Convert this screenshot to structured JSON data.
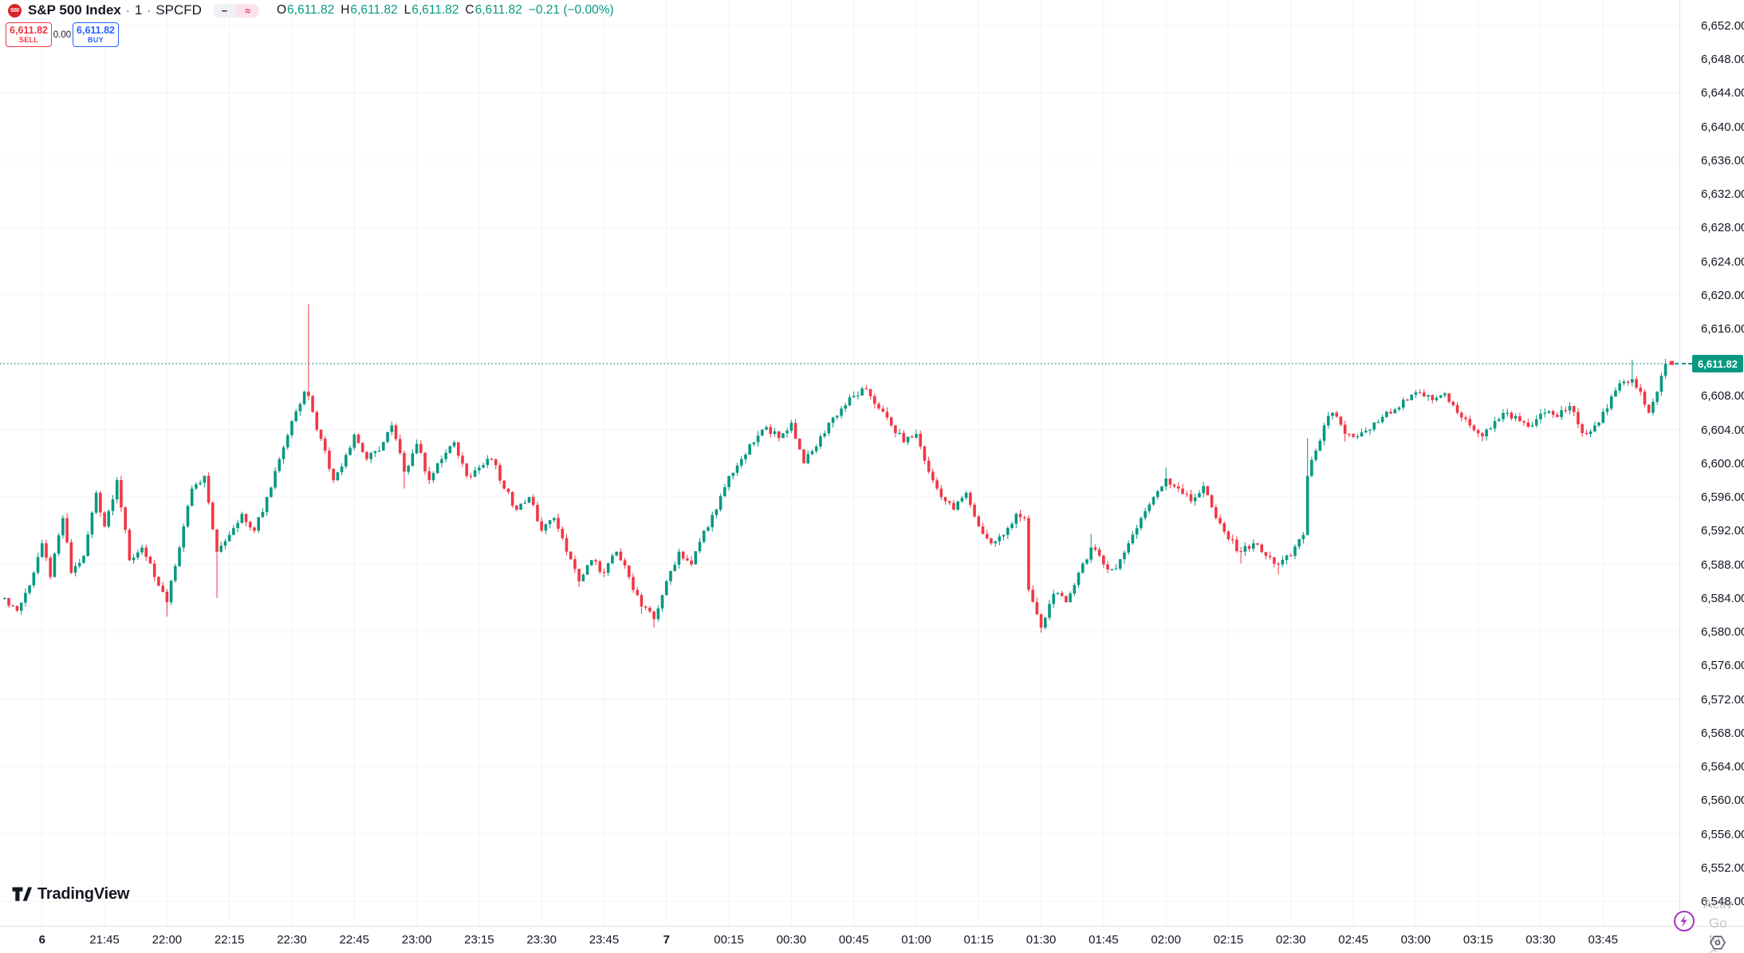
{
  "header": {
    "symbol_badge": "500",
    "symbol_name": "S&P 500 Index",
    "separator": "·",
    "interval": "1",
    "exchange": "SPCFD",
    "status_icons": [
      {
        "name": "dash-status-icon",
        "glyph": "−"
      },
      {
        "name": "approx-status-icon",
        "glyph": "≈"
      }
    ],
    "ohlc": {
      "o_label": "O",
      "o": "6,611.82",
      "h_label": "H",
      "h": "6,611.82",
      "l_label": "L",
      "l": "6,611.82",
      "c_label": "C",
      "c": "6,611.82",
      "change": "−0.21 (−0.00%)"
    }
  },
  "trade_panel": {
    "sell_price": "6,611.82",
    "sell_label": "SELL",
    "spread": "0.00",
    "buy_price": "6,611.82",
    "buy_label": "BUY"
  },
  "price_line": {
    "value": "6,611.82",
    "price": 6611.82,
    "color": "#089981"
  },
  "logo": {
    "text": "TradingView"
  },
  "watermark": {
    "line1": "Activ",
    "line2": "Go to S"
  },
  "time_axis": {
    "ticks": [
      {
        "label": "6",
        "time": "21:30",
        "bold": true
      },
      {
        "label": "21:45",
        "time": "21:45",
        "bold": false
      },
      {
        "label": "22:00",
        "time": "22:00",
        "bold": false
      },
      {
        "label": "22:15",
        "time": "22:15",
        "bold": false
      },
      {
        "label": "22:30",
        "time": "22:30",
        "bold": false
      },
      {
        "label": "22:45",
        "time": "22:45",
        "bold": false
      },
      {
        "label": "23:00",
        "time": "23:00",
        "bold": false
      },
      {
        "label": "23:15",
        "time": "23:15",
        "bold": false
      },
      {
        "label": "23:30",
        "time": "23:30",
        "bold": false
      },
      {
        "label": "23:45",
        "time": "23:45",
        "bold": false
      },
      {
        "label": "7",
        "time": "00:00",
        "bold": true
      },
      {
        "label": "00:15",
        "time": "00:15",
        "bold": false
      },
      {
        "label": "00:30",
        "time": "00:30",
        "bold": false
      },
      {
        "label": "00:45",
        "time": "00:45",
        "bold": false
      },
      {
        "label": "01:00",
        "time": "01:00",
        "bold": false
      },
      {
        "label": "01:15",
        "time": "01:15",
        "bold": false
      },
      {
        "label": "01:30",
        "time": "01:30",
        "bold": false
      },
      {
        "label": "01:45",
        "time": "01:45",
        "bold": false
      },
      {
        "label": "02:00",
        "time": "02:00",
        "bold": false
      },
      {
        "label": "02:15",
        "time": "02:15",
        "bold": false
      },
      {
        "label": "02:30",
        "time": "02:30",
        "bold": false
      },
      {
        "label": "02:45",
        "time": "02:45",
        "bold": false
      },
      {
        "label": "03:00",
        "time": "03:00",
        "bold": false
      },
      {
        "label": "03:15",
        "time": "03:15",
        "bold": false
      },
      {
        "label": "03:30",
        "time": "03:30",
        "bold": false
      },
      {
        "label": "03:45",
        "time": "03:45",
        "bold": false
      }
    ]
  },
  "chart_data": {
    "type": "candlestick",
    "title": "S&P 500 Index",
    "interval_minutes": 1,
    "symbol": "SPCFD",
    "session_start": "21:21",
    "colors": {
      "up": "#089981",
      "down": "#f23645",
      "grid": "#f2f3f5",
      "price_line": "#089981"
    },
    "y_axis": {
      "min": 6548,
      "max": 6652,
      "label_step": 4,
      "grid_step": 8,
      "hidden_labels": [
        6612
      ],
      "decimals": 2
    },
    "last_price": 6611.82,
    "waypoints": [
      [
        "21:21",
        6584
      ],
      [
        "21:24",
        6582.5
      ],
      [
        "21:27",
        6585.5
      ],
      [
        "21:30",
        6590.5
      ],
      [
        "21:32",
        6586.5
      ],
      [
        "21:35",
        6593.5
      ],
      [
        "21:37",
        6587
      ],
      [
        "21:40",
        6589
      ],
      [
        "21:43",
        6596.5
      ],
      [
        "21:45",
        6592.5
      ],
      [
        "21:48",
        6598
      ],
      [
        "21:51",
        6588.5
      ],
      [
        "21:54",
        6590
      ],
      [
        "21:57",
        6586.5
      ],
      [
        "22:00",
        6583.5,
        {
          "lo": 6581.8
        }
      ],
      [
        "22:03",
        6590
      ],
      [
        "22:06",
        6597
      ],
      [
        "22:09",
        6598.5
      ],
      [
        "22:12",
        6589.5,
        {
          "lo": 6584
        }
      ],
      [
        "22:15",
        6591.5
      ],
      [
        "22:18",
        6594
      ],
      [
        "22:21",
        6592
      ],
      [
        "22:24",
        6596
      ],
      [
        "22:27",
        6600.5
      ],
      [
        "22:30",
        6605
      ],
      [
        "22:33",
        6608.5
      ],
      [
        "22:34",
        6608,
        {
          "hi": 6618.9
        }
      ],
      [
        "22:36",
        6604
      ],
      [
        "22:38",
        6601.5
      ],
      [
        "22:40",
        6598
      ],
      [
        "22:43",
        6601
      ],
      [
        "22:45",
        6603.4
      ],
      [
        "22:48",
        6600.5
      ],
      [
        "22:51",
        6601.5
      ],
      [
        "22:54",
        6604.5
      ],
      [
        "22:57",
        6599,
        {
          "lo": 6597
        }
      ],
      [
        "23:00",
        6602.3
      ],
      [
        "23:03",
        6598
      ],
      [
        "23:06",
        6600.5
      ],
      [
        "23:09",
        6602.5
      ],
      [
        "23:12",
        6598.5
      ],
      [
        "23:15",
        6599.5
      ],
      [
        "23:18",
        6600.5
      ],
      [
        "23:21",
        6597
      ],
      [
        "23:24",
        6594.5
      ],
      [
        "23:27",
        6596
      ],
      [
        "23:30",
        6592
      ],
      [
        "23:33",
        6593.5
      ],
      [
        "23:36",
        6589.5
      ],
      [
        "23:39",
        6586,
        {
          "lo": 6585.3
        }
      ],
      [
        "23:42",
        6588.5
      ],
      [
        "23:45",
        6587
      ],
      [
        "23:48",
        6589.5
      ],
      [
        "23:51",
        6586.5
      ],
      [
        "23:54",
        6583,
        {
          "lo": 6582.1
        }
      ],
      [
        "23:57",
        6581.5,
        {
          "lo": 6580.5
        }
      ],
      [
        "00:00",
        6586
      ],
      [
        "00:03",
        6589.5
      ],
      [
        "00:06",
        6588
      ],
      [
        "00:09",
        6592
      ],
      [
        "00:12",
        6594.5
      ],
      [
        "00:15",
        6598.5
      ],
      [
        "00:18",
        6600.5
      ],
      [
        "00:21",
        6602.5
      ],
      [
        "00:24",
        6604.3
      ],
      [
        "00:27",
        6603
      ],
      [
        "00:30",
        6604.8
      ],
      [
        "00:33",
        6600
      ],
      [
        "00:36",
        6602
      ],
      [
        "00:39",
        6604.8
      ],
      [
        "00:42",
        6606.5
      ],
      [
        "00:45",
        6608
      ],
      [
        "00:48",
        6608.8,
        {
          "hi": 6609.3
        }
      ],
      [
        "00:51",
        6606.5
      ],
      [
        "00:54",
        6604.5
      ],
      [
        "00:57",
        6602.5
      ],
      [
        "01:00",
        6603.5
      ],
      [
        "01:03",
        6599
      ],
      [
        "01:06",
        6596
      ],
      [
        "01:09",
        6594.5
      ],
      [
        "01:12",
        6596.5
      ],
      [
        "01:15",
        6592.5
      ],
      [
        "01:18",
        6590.5
      ],
      [
        "01:21",
        6591.5
      ],
      [
        "01:24",
        6594
      ],
      [
        "01:26",
        6593.5
      ],
      [
        "01:27",
        6585
      ],
      [
        "01:30",
        6580.5,
        {
          "lo": 6579.9
        }
      ],
      [
        "01:33",
        6584.5
      ],
      [
        "01:36",
        6583.5
      ],
      [
        "01:39",
        6587
      ],
      [
        "01:42",
        6590,
        {
          "hi": 6591.6
        }
      ],
      [
        "01:45",
        6588
      ],
      [
        "01:48",
        6587.5
      ],
      [
        "01:51",
        6590.5
      ],
      [
        "01:54",
        6593.5
      ],
      [
        "01:57",
        6596
      ],
      [
        "02:00",
        6598.2,
        {
          "hi": 6599.5
        }
      ],
      [
        "02:03",
        6597
      ],
      [
        "02:06",
        6595.5
      ],
      [
        "02:09",
        6597.3
      ],
      [
        "02:12",
        6593.5
      ],
      [
        "02:15",
        6591
      ],
      [
        "02:18",
        6589.5,
        {
          "lo": 6588.1
        }
      ],
      [
        "02:21",
        6590.5
      ],
      [
        "02:24",
        6589
      ],
      [
        "02:27",
        6588,
        {
          "lo": 6586.8
        }
      ],
      [
        "02:30",
        6589
      ],
      [
        "02:32",
        6591
      ],
      [
        "02:33",
        6591.5
      ],
      [
        "02:34",
        6598.5,
        {
          "hi": 6603
        }
      ],
      [
        "02:36",
        6601.5
      ],
      [
        "02:38",
        6604.5
      ],
      [
        "02:40",
        6606
      ],
      [
        "02:43",
        6603.5,
        {
          "lo": 6602.6
        }
      ],
      [
        "02:46",
        6603.2
      ],
      [
        "02:49",
        6604
      ],
      [
        "02:52",
        6605.5
      ],
      [
        "02:55",
        6606.4
      ],
      [
        "02:58",
        6607.5
      ],
      [
        "03:01",
        6608.4,
        {
          "hi": 6608.8
        }
      ],
      [
        "03:04",
        6607.5
      ],
      [
        "03:07",
        6608.3
      ],
      [
        "03:10",
        6606
      ],
      [
        "03:13",
        6604.5
      ],
      [
        "03:16",
        6603.2,
        {
          "lo": 6602.6
        }
      ],
      [
        "03:19",
        6605
      ],
      [
        "03:22",
        6606
      ],
      [
        "03:25",
        6605
      ],
      [
        "03:28",
        6604.5
      ],
      [
        "03:31",
        6606
      ],
      [
        "03:34",
        6605.5
      ],
      [
        "03:37",
        6606.8
      ],
      [
        "03:40",
        6603.6
      ],
      [
        "03:43",
        6604.5
      ],
      [
        "03:46",
        6606.5
      ],
      [
        "03:49",
        6609.5
      ],
      [
        "03:52",
        6610,
        {
          "hi": 6612.3
        }
      ],
      [
        "03:54",
        6608.5
      ],
      [
        "03:56",
        6606
      ],
      [
        "03:58",
        6608.5
      ],
      [
        "04:00",
        6611.82,
        {
          "hi": 6612.4
        }
      ]
    ]
  }
}
